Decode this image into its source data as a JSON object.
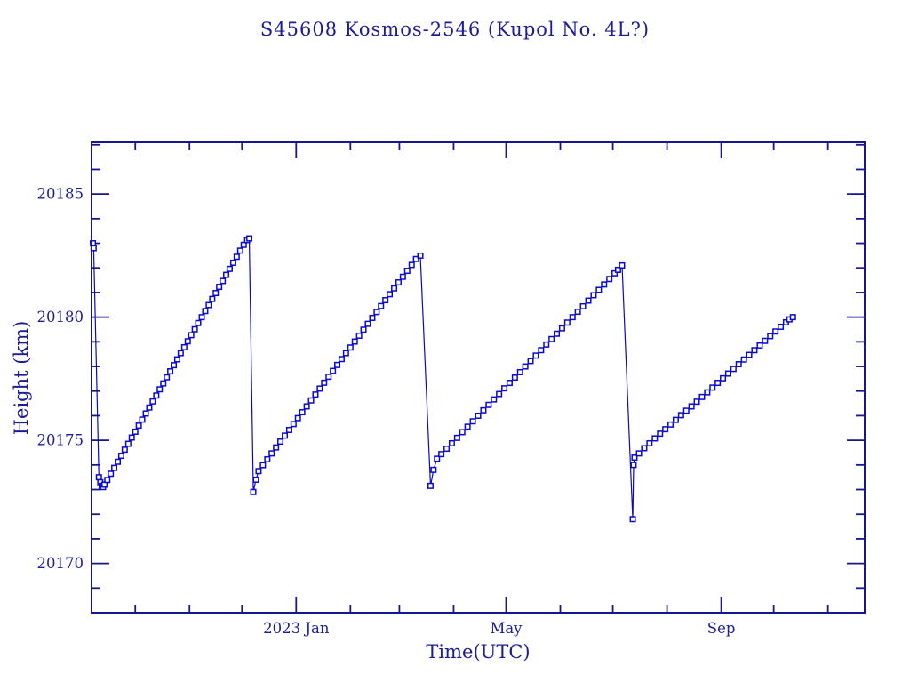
{
  "title": "S45608 Kosmos-2546  (Kupol No. 4L?)",
  "colors": {
    "axis": "#16168e",
    "text": "#1c1c96",
    "data_line": "#0a0ac0",
    "marker_stroke": "#0909cf",
    "marker_fill": "#ffffff",
    "background": "#ffffff"
  },
  "chart_data": {
    "type": "line",
    "title": "S45608 Kosmos-2546  (Kupol No. 4L?)",
    "xlabel": "Time(UTC)",
    "ylabel": "Height (km)",
    "grid": false,
    "legend": null,
    "marker": "open-square",
    "x_axis": {
      "unit": "days since 2022-09-01 (read from labeled month ticks)",
      "range_days": [
        5,
        447
      ],
      "major_ticks": [
        {
          "day": 122,
          "label": "2023 Jan"
        },
        {
          "day": 242,
          "label": "May"
        },
        {
          "day": 365,
          "label": "Sep"
        }
      ],
      "minor_ticks_days": [
        30,
        61,
        91,
        153,
        181,
        212,
        273,
        303,
        334,
        395,
        426
      ]
    },
    "y_axis": {
      "unit": "km",
      "range": [
        20168.0,
        20187.1
      ],
      "major_ticks": [
        {
          "value": 20170,
          "label": "20170"
        },
        {
          "value": 20175,
          "label": "20175"
        },
        {
          "value": 20180,
          "label": "20180"
        },
        {
          "value": 20185,
          "label": "20185"
        }
      ],
      "minor_step": 1
    },
    "series": [
      {
        "name": "height_km",
        "points": [
          [
            5.8,
            20183.0
          ],
          [
            6.2,
            20182.8
          ],
          [
            9.2,
            20173.5
          ],
          [
            10,
            20173.3
          ],
          [
            10.8,
            20173.15
          ],
          [
            11.6,
            20173.1
          ],
          [
            12.4,
            20173.2
          ],
          [
            14,
            20173.39
          ],
          [
            16,
            20173.64
          ],
          [
            18,
            20173.88
          ],
          [
            20,
            20174.13
          ],
          [
            22,
            20174.37
          ],
          [
            24,
            20174.62
          ],
          [
            26,
            20174.86
          ],
          [
            28,
            20175.11
          ],
          [
            30,
            20175.35
          ],
          [
            32,
            20175.6
          ],
          [
            34,
            20175.84
          ],
          [
            36,
            20176.09
          ],
          [
            38,
            20176.33
          ],
          [
            40,
            20176.58
          ],
          [
            42,
            20176.82
          ],
          [
            44,
            20177.07
          ],
          [
            46,
            20177.31
          ],
          [
            48,
            20177.56
          ],
          [
            50,
            20177.8
          ],
          [
            52,
            20178.05
          ],
          [
            54,
            20178.29
          ],
          [
            56,
            20178.54
          ],
          [
            58,
            20178.78
          ],
          [
            60,
            20179.02
          ],
          [
            62,
            20179.27
          ],
          [
            64,
            20179.51
          ],
          [
            66,
            20179.76
          ],
          [
            68,
            20180.0
          ],
          [
            70,
            20180.25
          ],
          [
            72,
            20180.49
          ],
          [
            74,
            20180.74
          ],
          [
            76,
            20180.98
          ],
          [
            78,
            20181.23
          ],
          [
            80,
            20181.47
          ],
          [
            82,
            20181.72
          ],
          [
            84,
            20181.96
          ],
          [
            86,
            20182.21
          ],
          [
            88,
            20182.45
          ],
          [
            90,
            20182.7
          ],
          [
            92,
            20182.94
          ],
          [
            94,
            20183.13
          ],
          [
            95.2,
            20183.2
          ],
          [
            97.5,
            20172.9
          ],
          [
            99,
            20173.4
          ],
          [
            100.5,
            20173.75
          ],
          [
            103,
            20173.99
          ],
          [
            105.5,
            20174.23
          ],
          [
            108,
            20174.47
          ],
          [
            110.5,
            20174.71
          ],
          [
            113,
            20174.95
          ],
          [
            115.5,
            20175.19
          ],
          [
            118,
            20175.42
          ],
          [
            120.5,
            20175.66
          ],
          [
            123,
            20175.9
          ],
          [
            125.5,
            20176.14
          ],
          [
            128,
            20176.38
          ],
          [
            130.5,
            20176.62
          ],
          [
            133,
            20176.86
          ],
          [
            135.5,
            20177.1
          ],
          [
            138,
            20177.34
          ],
          [
            140.5,
            20177.58
          ],
          [
            143,
            20177.82
          ],
          [
            145.5,
            20178.06
          ],
          [
            148,
            20178.3
          ],
          [
            150.5,
            20178.54
          ],
          [
            153,
            20178.77
          ],
          [
            155.5,
            20179.01
          ],
          [
            158,
            20179.25
          ],
          [
            160.5,
            20179.49
          ],
          [
            163,
            20179.73
          ],
          [
            165.5,
            20179.97
          ],
          [
            168,
            20180.21
          ],
          [
            170.5,
            20180.45
          ],
          [
            173,
            20180.69
          ],
          [
            175.5,
            20180.93
          ],
          [
            178,
            20181.17
          ],
          [
            180.5,
            20181.41
          ],
          [
            183,
            20181.64
          ],
          [
            185.5,
            20181.88
          ],
          [
            188,
            20182.12
          ],
          [
            190.5,
            20182.36
          ],
          [
            193,
            20182.5
          ],
          [
            198.8,
            20173.15
          ],
          [
            200.5,
            20173.8
          ],
          [
            202.5,
            20174.25
          ],
          [
            205,
            20174.44
          ],
          [
            208,
            20174.66
          ],
          [
            211,
            20174.88
          ],
          [
            214,
            20175.1
          ],
          [
            217,
            20175.33
          ],
          [
            220,
            20175.55
          ],
          [
            223,
            20175.77
          ],
          [
            226,
            20176.0
          ],
          [
            229,
            20176.22
          ],
          [
            232,
            20176.44
          ],
          [
            235,
            20176.66
          ],
          [
            238,
            20176.88
          ],
          [
            241,
            20177.11
          ],
          [
            244,
            20177.33
          ],
          [
            247,
            20177.55
          ],
          [
            250,
            20177.77
          ],
          [
            253,
            20178.0
          ],
          [
            256,
            20178.22
          ],
          [
            259,
            20178.44
          ],
          [
            262,
            20178.66
          ],
          [
            265,
            20178.89
          ],
          [
            268,
            20179.11
          ],
          [
            271,
            20179.33
          ],
          [
            274,
            20179.55
          ],
          [
            277,
            20179.78
          ],
          [
            280,
            20180.0
          ],
          [
            283,
            20180.22
          ],
          [
            286,
            20180.44
          ],
          [
            289,
            20180.67
          ],
          [
            292,
            20180.89
          ],
          [
            295,
            20181.11
          ],
          [
            298,
            20181.33
          ],
          [
            301,
            20181.55
          ],
          [
            304,
            20181.78
          ],
          [
            306,
            20181.92
          ],
          [
            308.3,
            20182.1
          ],
          [
            314.4,
            20171.8
          ],
          [
            314.9,
            20174.0
          ],
          [
            315.4,
            20174.3
          ],
          [
            318,
            20174.47
          ],
          [
            321,
            20174.68
          ],
          [
            324,
            20174.88
          ],
          [
            327,
            20175.08
          ],
          [
            330,
            20175.27
          ],
          [
            333,
            20175.45
          ],
          [
            336,
            20175.64
          ],
          [
            339,
            20175.83
          ],
          [
            342,
            20176.02
          ],
          [
            345,
            20176.2
          ],
          [
            348,
            20176.38
          ],
          [
            351,
            20176.57
          ],
          [
            354,
            20176.76
          ],
          [
            357,
            20176.95
          ],
          [
            360,
            20177.14
          ],
          [
            363,
            20177.33
          ],
          [
            366,
            20177.52
          ],
          [
            369,
            20177.71
          ],
          [
            372,
            20177.9
          ],
          [
            375,
            20178.09
          ],
          [
            378,
            20178.28
          ],
          [
            381,
            20178.47
          ],
          [
            384,
            20178.66
          ],
          [
            387,
            20178.85
          ],
          [
            390,
            20179.04
          ],
          [
            393,
            20179.23
          ],
          [
            396,
            20179.42
          ],
          [
            399,
            20179.61
          ],
          [
            402,
            20179.79
          ],
          [
            404,
            20179.91
          ],
          [
            406,
            20180.0
          ]
        ]
      }
    ]
  }
}
